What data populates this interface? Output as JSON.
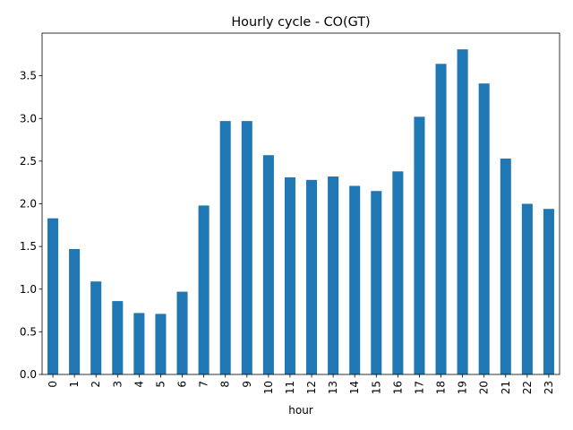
{
  "chart_data": {
    "type": "bar",
    "title": "Hourly cycle - CO(GT)",
    "xlabel": "hour",
    "ylabel": "",
    "categories": [
      "0",
      "1",
      "2",
      "3",
      "4",
      "5",
      "6",
      "7",
      "8",
      "9",
      "10",
      "11",
      "12",
      "13",
      "14",
      "15",
      "16",
      "17",
      "18",
      "19",
      "20",
      "21",
      "22",
      "23"
    ],
    "values": [
      1.83,
      1.47,
      1.09,
      0.86,
      0.72,
      0.71,
      0.97,
      1.98,
      2.97,
      2.97,
      2.57,
      2.31,
      2.28,
      2.32,
      2.21,
      2.15,
      2.38,
      3.02,
      3.64,
      3.81,
      3.41,
      2.53,
      2.0,
      1.94
    ],
    "ylim": [
      0,
      4.0
    ],
    "yticks": [
      "0.0",
      "0.5",
      "1.0",
      "1.5",
      "2.0",
      "2.5",
      "3.0",
      "3.5"
    ],
    "bar_color": "#1f77b4",
    "grid": false,
    "legend": "none"
  }
}
